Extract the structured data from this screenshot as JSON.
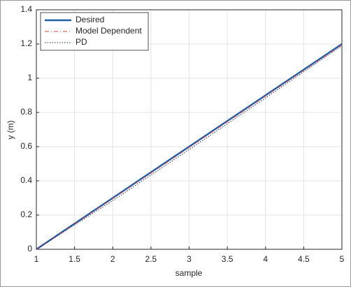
{
  "chart_data": {
    "type": "line",
    "x_label": "sample",
    "y_label": "y (m)",
    "x": [
      1,
      2,
      3,
      4,
      5
    ],
    "series": [
      {
        "name": "Desired",
        "color": "#1f5fa8",
        "line_style": "solid",
        "line_width": 2.5,
        "values": [
          0,
          0.3,
          0.6,
          0.9,
          1.2
        ]
      },
      {
        "name": "Model Dependent",
        "color": "#d9453a",
        "line_style": "dashdot",
        "line_width": 1,
        "values": [
          0,
          0.296,
          0.595,
          0.895,
          1.195
        ]
      },
      {
        "name": "PD",
        "color": "#1a2a6c",
        "line_style": "dotted",
        "line_width": 1,
        "values": [
          0,
          0.285,
          0.583,
          0.885,
          1.19
        ]
      }
    ],
    "xlim": [
      1,
      5
    ],
    "xticks": [
      1,
      1.5,
      2,
      2.5,
      3,
      3.5,
      4,
      4.5,
      5
    ],
    "ylim": [
      0,
      1.4
    ],
    "yticks": [
      0,
      0.2,
      0.4,
      0.6,
      0.8,
      1,
      1.2,
      1.4
    ],
    "grid": true,
    "legend": "upper-left"
  }
}
